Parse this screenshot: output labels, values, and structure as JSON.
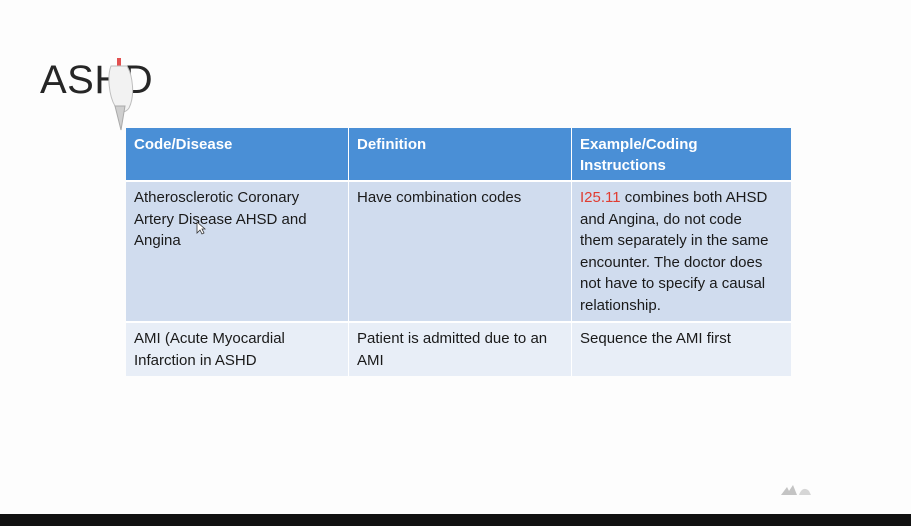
{
  "slide": {
    "title": "ASHD"
  },
  "table": {
    "headers": [
      "Code/Disease",
      "Definition",
      "Example/Coding Instructions"
    ],
    "rows": [
      {
        "disease": "Atherosclerotic Coronary Artery Disease AHSD and Angina",
        "definition": "Have combination codes",
        "example_code": "I25.11",
        "example_text": " combines both AHSD and Angina, do not code them separately in the same encounter.  The doctor does not have to specify a causal relationship."
      },
      {
        "disease": "AMI (Acute Myocardial Infarction in ASHD",
        "definition": "Patient is admitted due to an AMI",
        "example_text": "Sequence the AMI first"
      }
    ]
  },
  "colors": {
    "header_bg": "#4a8fd6",
    "row_odd_bg": "#d0dcee",
    "row_even_bg": "#e8eef7",
    "code_highlight": "#e03c31"
  },
  "icons": {
    "pen_cursor": "pen-cursor-icon",
    "mouse_pointer": "mouse-pointer-icon",
    "corner_mark": "watermark-icon"
  }
}
